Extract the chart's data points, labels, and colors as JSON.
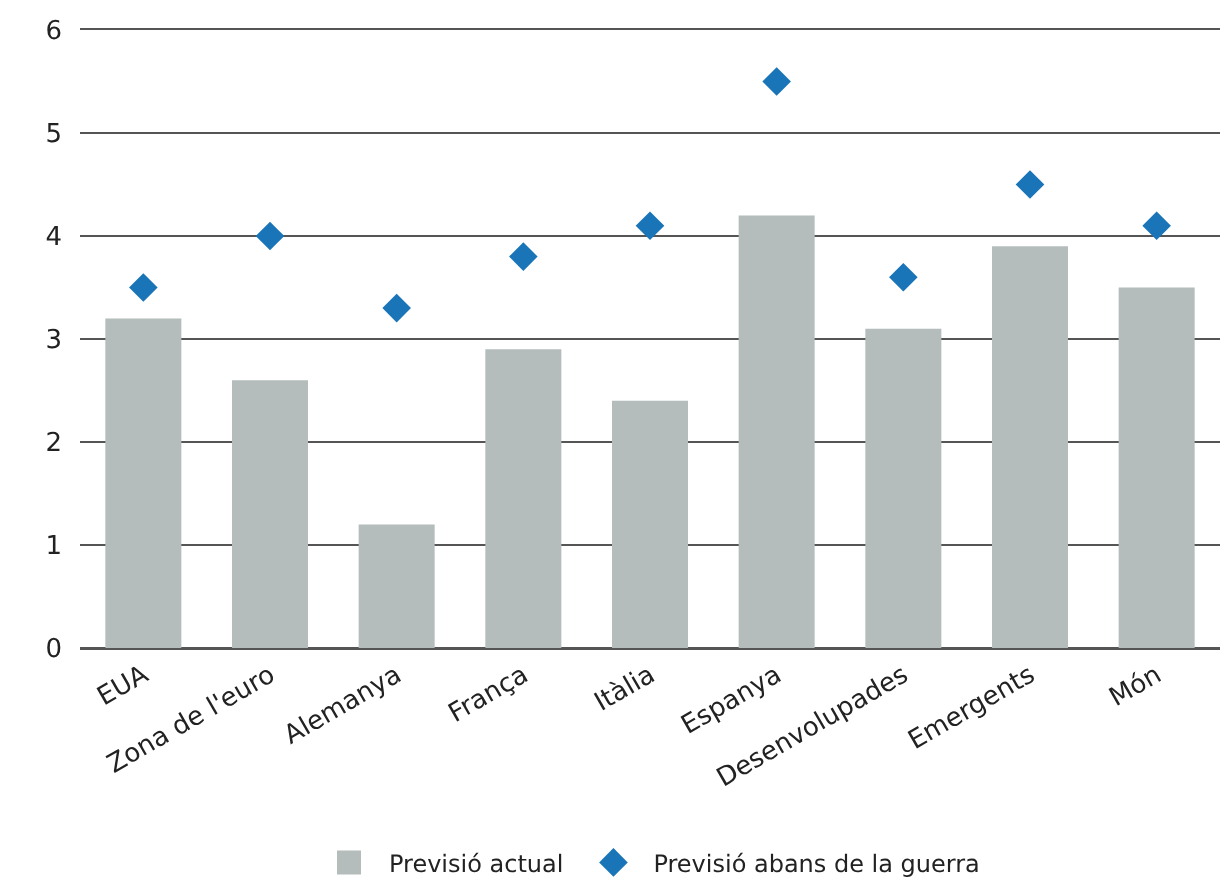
{
  "chart_data": {
    "type": "bar",
    "categories": [
      "EUA",
      "Zona de l'euro",
      "Alemanya",
      "França",
      "Itàlia",
      "Espanya",
      "Desenvolupades",
      "Emergents",
      "Món"
    ],
    "series": [
      {
        "name": "Previsió actual",
        "color": "#b4bdbc",
        "values": [
          3.2,
          2.6,
          1.2,
          2.9,
          2.4,
          4.2,
          3.1,
          3.9,
          3.5
        ]
      },
      {
        "name": "Previsió abans de la guerra",
        "type": "scatter",
        "color": "#1a75b8",
        "marker": "diamond",
        "values": [
          3.5,
          4.0,
          3.3,
          3.8,
          4.1,
          5.5,
          3.6,
          4.5,
          4.1
        ]
      }
    ],
    "ylim": [
      0,
      6
    ],
    "yticks": [
      0,
      1,
      2,
      3,
      4,
      5,
      6
    ],
    "grid": "y",
    "legend": "bottom"
  }
}
